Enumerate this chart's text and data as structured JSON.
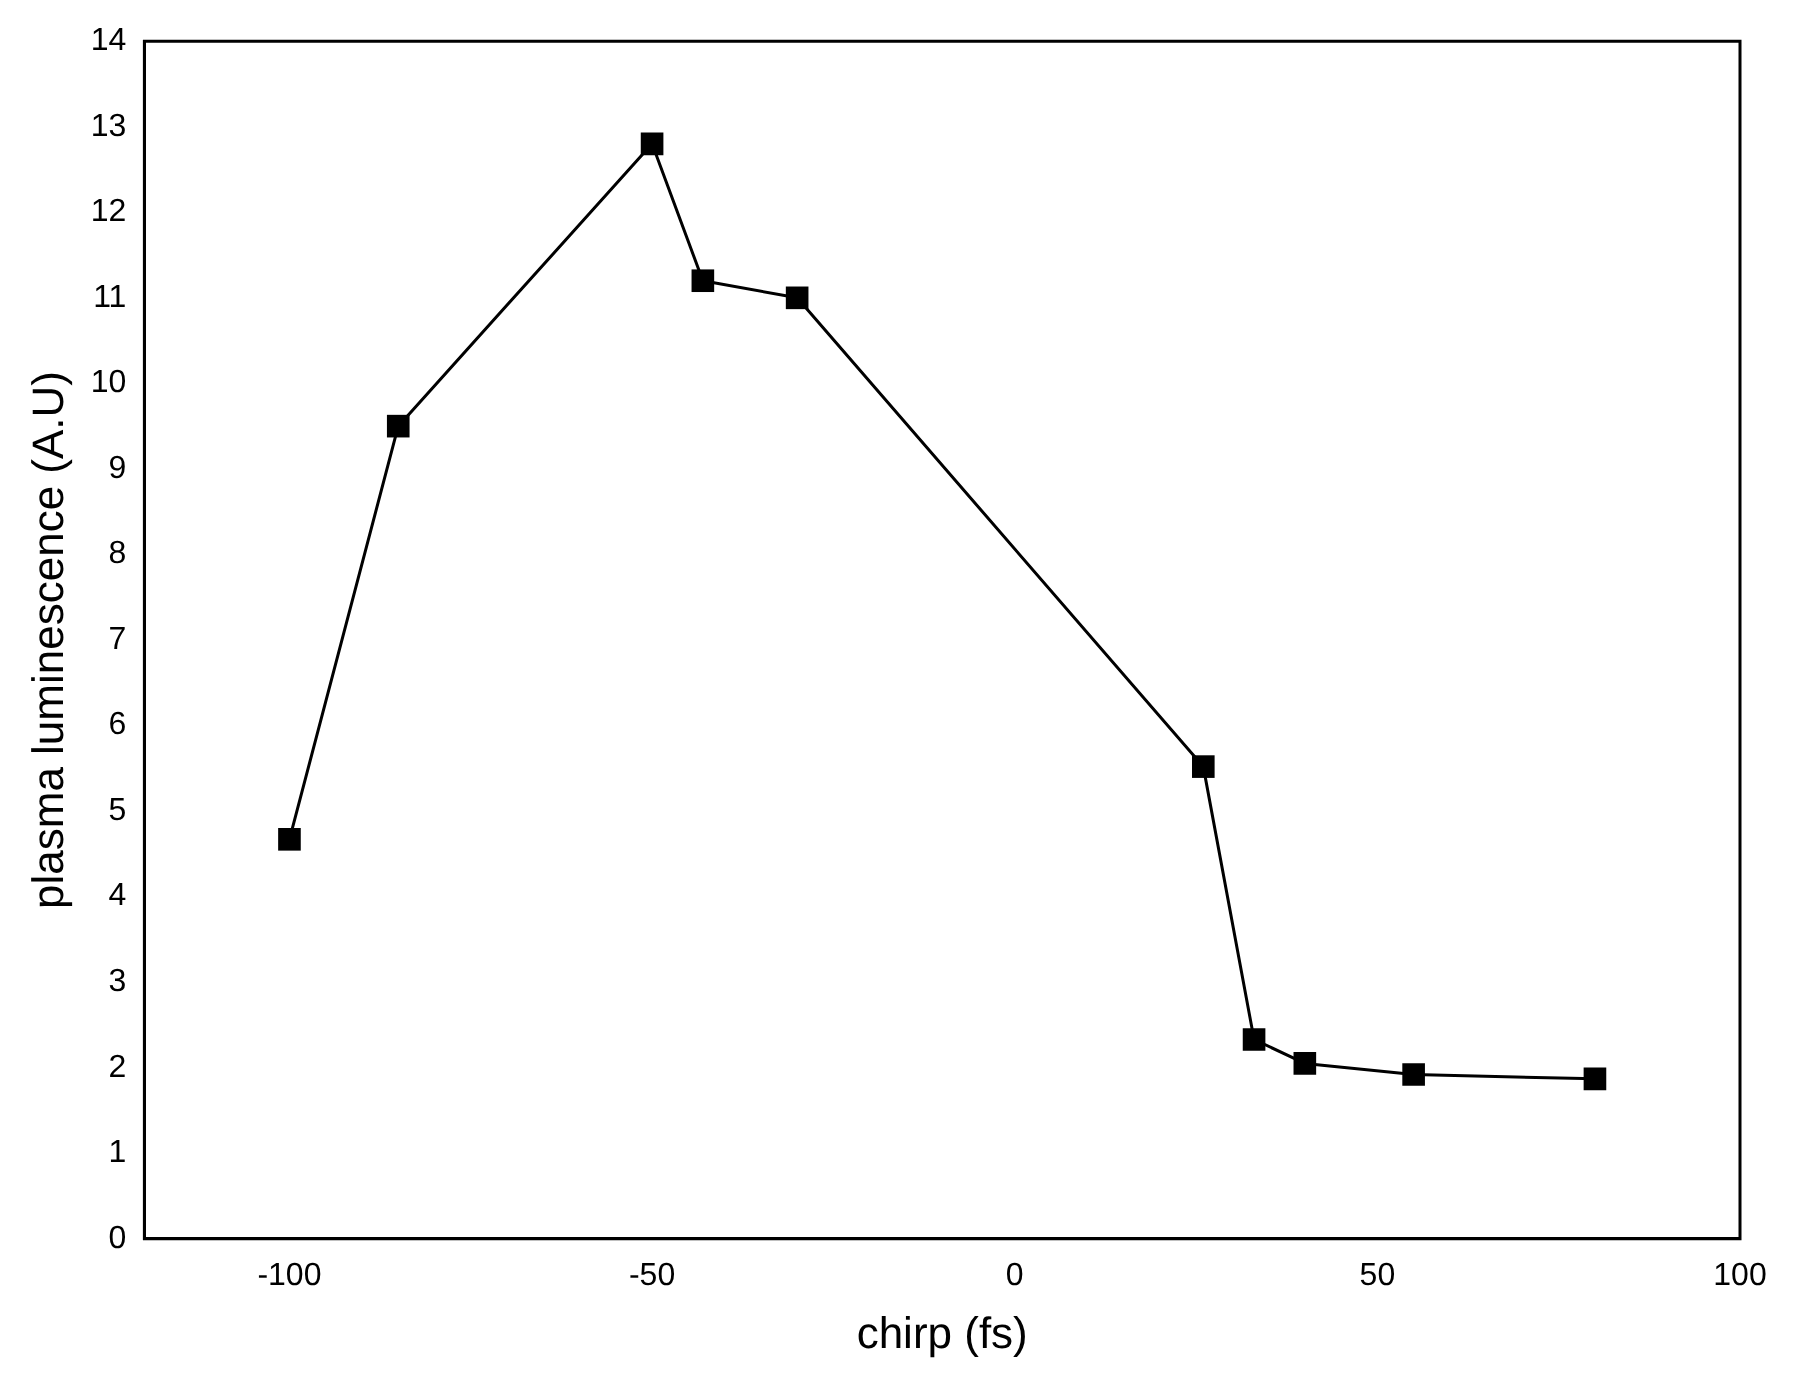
{
  "chart_data": {
    "type": "line",
    "xlabel": "chirp (fs)",
    "ylabel": "plasma luminescence (A.U)",
    "x": [
      -100,
      -85,
      -50,
      -43,
      -30,
      26,
      33,
      40,
      55,
      80
    ],
    "values": [
      4.67,
      9.5,
      12.8,
      11.2,
      11.0,
      5.52,
      2.33,
      2.05,
      1.92,
      1.87
    ],
    "color": "#000000",
    "marker": "square",
    "line_style": "solid",
    "grid": false,
    "legend": false,
    "xlim": [
      -120,
      100
    ],
    "xticks": [
      -100,
      -50,
      0,
      50,
      100
    ],
    "ylim": [
      0,
      14
    ],
    "yticks": [
      0,
      1,
      2,
      3,
      4,
      5,
      6,
      7,
      8,
      9,
      10,
      11,
      12,
      13,
      14
    ]
  }
}
